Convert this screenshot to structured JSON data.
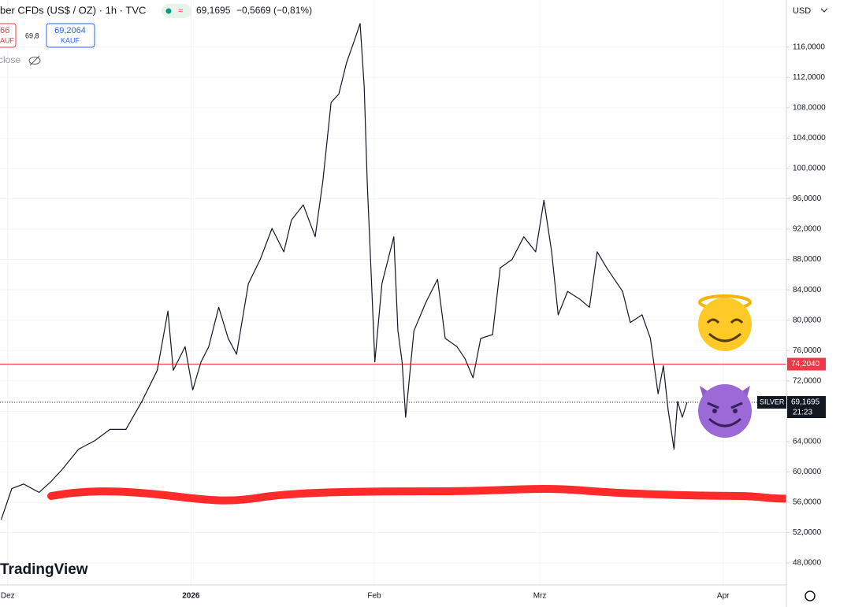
{
  "header": {
    "symbol": "ber CFDs (US$ / OZ) · 1h · TVC",
    "price": "69,1695",
    "change": "−0,5669 (−0,81%)",
    "sell_price": "66",
    "sell_action": "KAUF",
    "spread": "69,8",
    "buy_price": "69,2064",
    "buy_action": "KAUF",
    "indicator": "close",
    "logo": "TradingView",
    "currency": "USD"
  },
  "chart_data": {
    "type": "line",
    "x": [
      -1.1,
      0.7,
      2.7,
      5.3,
      7.3,
      9.3,
      12.0,
      14.7,
      17.3,
      20.0,
      22.7,
      25.3,
      27.1,
      28.0,
      30.0,
      31.3,
      32.7,
      34.0,
      35.7,
      37.3,
      38.7,
      40.7,
      42.7,
      44.7,
      46.7,
      48.0,
      50.0,
      52.0,
      53.3,
      54.7,
      56.0,
      57.3,
      58.7,
      59.6,
      60.3,
      60.8,
      61.6,
      62.1,
      63.3,
      65.3,
      66.0,
      66.7,
      67.3,
      68.7,
      70.7,
      72.7,
      74.0,
      76.0,
      77.3,
      78.7,
      80.0,
      82.0,
      83.3,
      85.3,
      87.3,
      89.3,
      90.7,
      92.0,
      93.1,
      94.7,
      96.7,
      98.4,
      99.7,
      101.3,
      104.0,
      105.3,
      107.3,
      108.7,
      110.0,
      110.9,
      111.7,
      112.7,
      113.3,
      114.1,
      114.9
    ],
    "series": [
      {
        "name": "SILVER",
        "color": "#131722",
        "values": [
          53.7,
          57.8,
          58.4,
          57.3,
          58.7,
          60.4,
          63.0,
          64.1,
          65.6,
          65.6,
          69.3,
          73.4,
          81.2,
          73.4,
          76.5,
          70.8,
          74.5,
          76.5,
          81.7,
          77.6,
          75.5,
          84.8,
          88.0,
          92.1,
          89.0,
          93.2,
          95.2,
          91.0,
          98.3,
          108.7,
          109.8,
          113.9,
          117.0,
          119.1,
          110.8,
          98.3,
          83.8,
          74.5,
          84.8,
          91.0,
          78.6,
          74.5,
          67.2,
          78.6,
          82.3,
          85.4,
          77.6,
          76.5,
          75.0,
          72.4,
          77.6,
          78.1,
          86.9,
          88.0,
          91.0,
          89.0,
          95.8,
          89.0,
          80.7,
          83.8,
          82.8,
          81.7,
          89.0,
          86.9,
          83.8,
          79.7,
          80.7,
          77.6,
          70.3,
          74.0,
          68.2,
          63.0,
          69.3,
          67.2,
          69.1695
        ]
      }
    ],
    "xlim": [
      -1.3,
      131.7
    ],
    "xticks": [
      {
        "value": 0,
        "label": "Dez"
      },
      {
        "value": 31,
        "label": "2026"
      },
      {
        "value": 62,
        "label": "Feb"
      },
      {
        "value": 90,
        "label": "Mrz"
      },
      {
        "value": 121,
        "label": "Apr"
      }
    ],
    "ylim": [
      45.1,
      122.2
    ],
    "yticks": [
      {
        "value": 48,
        "label": "48,0000"
      },
      {
        "value": 52,
        "label": "52,0000"
      },
      {
        "value": 56,
        "label": "56,0000"
      },
      {
        "value": 60,
        "label": "60,0000"
      },
      {
        "value": 64,
        "label": "64,0000"
      },
      {
        "value": 68,
        "label": "68,0000"
      },
      {
        "value": 72,
        "label": "72,0000"
      },
      {
        "value": 76,
        "label": "76,0000"
      },
      {
        "value": 80,
        "label": "80,0000"
      },
      {
        "value": 84,
        "label": "84,0000"
      },
      {
        "value": 88,
        "label": "88,0000"
      },
      {
        "value": 92,
        "label": "92,0000"
      },
      {
        "value": 96,
        "label": "96,0000"
      },
      {
        "value": 100,
        "label": "100,0000"
      },
      {
        "value": 104,
        "label": "104,0000"
      },
      {
        "value": 108,
        "label": "108,0000"
      },
      {
        "value": 112,
        "label": "112,0000"
      },
      {
        "value": 116,
        "label": "116,0000"
      }
    ],
    "grid": true,
    "price_line": {
      "value": 74.204,
      "label": "74,2040",
      "color": "#f23645"
    },
    "last_price": {
      "value": 69.1695,
      "label": "69,1695",
      "countdown": "21:23"
    }
  }
}
